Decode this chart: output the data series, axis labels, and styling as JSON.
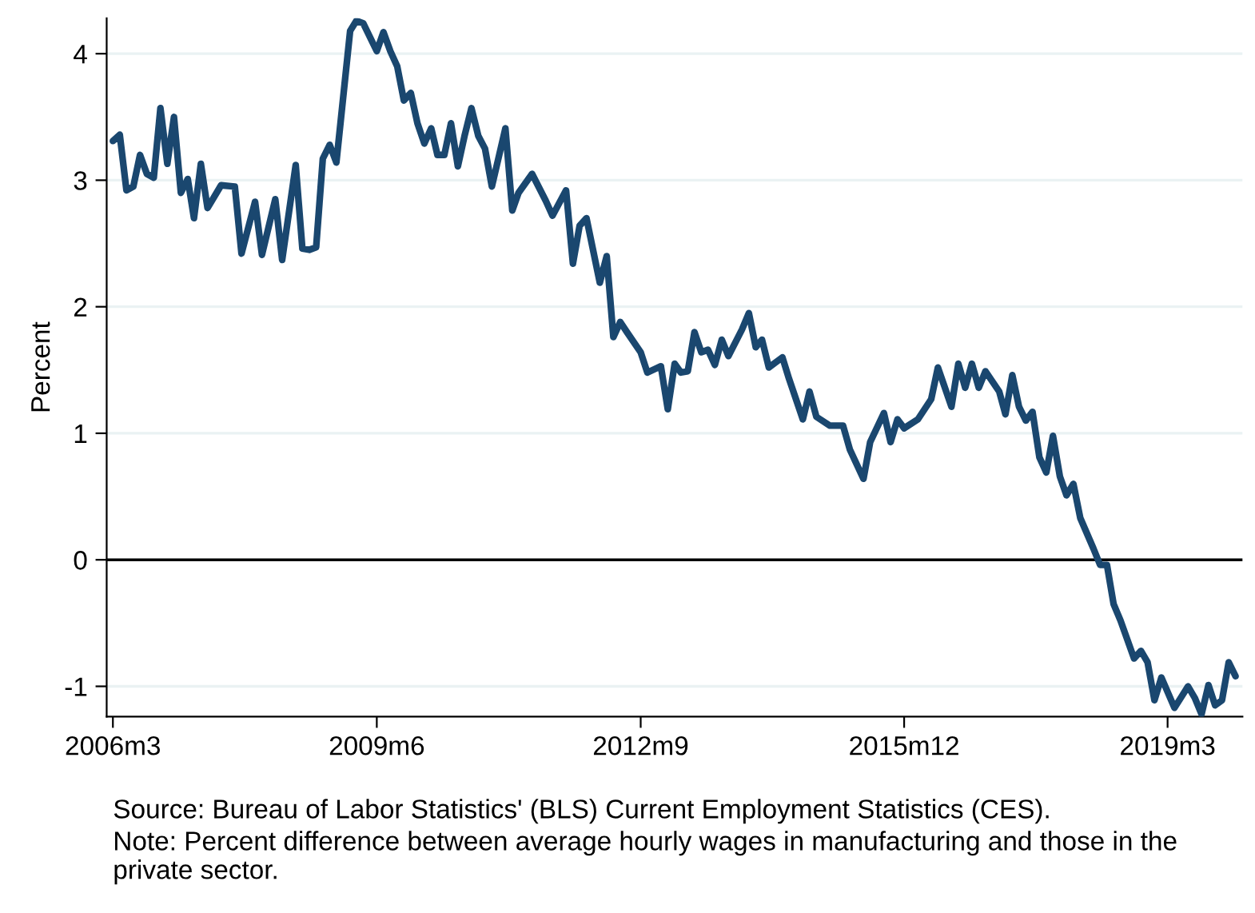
{
  "chart_data": {
    "type": "line",
    "ylabel": "Percent",
    "x": [
      "2006-03",
      "2006-04",
      "2006-05",
      "2006-06",
      "2006-07",
      "2006-08",
      "2006-09",
      "2006-10",
      "2006-11",
      "2006-12",
      "2007-01",
      "2007-02",
      "2007-03",
      "2007-04",
      "2007-05",
      "2007-07",
      "2007-09",
      "2007-10",
      "2007-12",
      "2008-01",
      "2008-03",
      "2008-04",
      "2008-06",
      "2008-07",
      "2008-08",
      "2008-09",
      "2008-10",
      "2008-11",
      "2008-12",
      "2009-02",
      "2009-03",
      "2009-04",
      "2009-06",
      "2009-07",
      "2009-08",
      "2009-09",
      "2009-10",
      "2009-11",
      "2009-12",
      "2010-01",
      "2010-02",
      "2010-03",
      "2010-04",
      "2010-05",
      "2010-06",
      "2010-07",
      "2010-08",
      "2010-09",
      "2010-10",
      "2010-11",
      "2011-01",
      "2011-02",
      "2011-03",
      "2011-05",
      "2011-07",
      "2011-08",
      "2011-10",
      "2011-11",
      "2011-12",
      "2012-01",
      "2012-03",
      "2012-04",
      "2012-05",
      "2012-06",
      "2012-07",
      "2012-09",
      "2012-10",
      "2012-12",
      "2013-01",
      "2013-02",
      "2013-03",
      "2013-04",
      "2013-05",
      "2013-06",
      "2013-07",
      "2013-08",
      "2013-09",
      "2013-10",
      "2013-12",
      "2014-01",
      "2014-02",
      "2014-03",
      "2014-04",
      "2014-06",
      "2014-07",
      "2014-09",
      "2014-10",
      "2014-11",
      "2015-01",
      "2015-03",
      "2015-04",
      "2015-06",
      "2015-07",
      "2015-09",
      "2015-10",
      "2015-11",
      "2015-12",
      "2016-02",
      "2016-04",
      "2016-05",
      "2016-07",
      "2016-08",
      "2016-09",
      "2016-10",
      "2016-11",
      "2016-12",
      "2017-02",
      "2017-03",
      "2017-04",
      "2017-05",
      "2017-06",
      "2017-07",
      "2017-08",
      "2017-09",
      "2017-10",
      "2017-11",
      "2017-12",
      "2018-01",
      "2018-02",
      "2018-04",
      "2018-05",
      "2018-06",
      "2018-07",
      "2018-08",
      "2018-10",
      "2018-11",
      "2018-12",
      "2019-01",
      "2019-02",
      "2019-04",
      "2019-06",
      "2019-07",
      "2019-08",
      "2019-09",
      "2019-10",
      "2019-11",
      "2019-12",
      "2020-01"
    ],
    "series": [
      {
        "color": "#1a476f",
        "values": [
          3.31,
          3.36,
          2.92,
          2.95,
          3.2,
          3.05,
          3.02,
          3.57,
          3.13,
          3.5,
          2.9,
          3.01,
          2.7,
          3.13,
          2.78,
          2.96,
          2.95,
          2.42,
          2.83,
          2.41,
          2.85,
          2.37,
          3.12,
          2.46,
          2.45,
          2.47,
          3.17,
          3.28,
          3.14,
          4.18,
          4.26,
          4.24,
          4.02,
          4.17,
          4.02,
          3.9,
          3.63,
          3.69,
          3.45,
          3.29,
          3.41,
          3.2,
          3.2,
          3.45,
          3.11,
          3.35,
          3.57,
          3.35,
          3.25,
          2.95,
          3.41,
          2.76,
          2.9,
          3.05,
          2.84,
          2.72,
          2.92,
          2.34,
          2.64,
          2.7,
          2.19,
          2.4,
          1.76,
          1.88,
          1.8,
          1.64,
          1.48,
          1.53,
          1.19,
          1.55,
          1.48,
          1.49,
          1.8,
          1.64,
          1.66,
          1.54,
          1.74,
          1.61,
          1.82,
          1.95,
          1.68,
          1.74,
          1.52,
          1.6,
          1.43,
          1.11,
          1.33,
          1.13,
          1.06,
          1.06,
          0.87,
          0.64,
          0.93,
          1.16,
          0.93,
          1.11,
          1.04,
          1.11,
          1.27,
          1.52,
          1.21,
          1.55,
          1.36,
          1.55,
          1.36,
          1.49,
          1.33,
          1.15,
          1.46,
          1.21,
          1.1,
          1.17,
          0.81,
          0.69,
          0.98,
          0.66,
          0.51,
          0.6,
          0.33,
          0.09,
          -0.04,
          -0.04,
          -0.35,
          -0.48,
          -0.78,
          -0.72,
          -0.81,
          -1.11,
          -0.93,
          -1.17,
          -1.0,
          -1.09,
          -1.22,
          -0.99,
          -1.15,
          -1.11,
          -0.81,
          -0.92
        ]
      }
    ],
    "xlim": [
      "2006-02",
      "2020-02"
    ],
    "xticks": [
      {
        "value": "2006-03",
        "label": "2006m3"
      },
      {
        "value": "2009-06",
        "label": "2009m6"
      },
      {
        "value": "2012-09",
        "label": "2012m9"
      },
      {
        "value": "2015-12",
        "label": "2015m12"
      },
      {
        "value": "2019-03",
        "label": "2019m3"
      }
    ],
    "ylim": [
      -1.24,
      4.28
    ],
    "yticks": [
      -1,
      0,
      1,
      2,
      3,
      4
    ],
    "grid": "y",
    "legend": false,
    "marker": "none",
    "line_style": "solid",
    "ref_lines": [
      {
        "axis": "y",
        "value": 0,
        "color": "#000000"
      }
    ],
    "annotations": [
      "Source: Bureau of Labor Statistics' (BLS) Current Employment Statistics (CES).",
      "Note: Percent difference between average hourly wages in manufacturing and those in the private sector."
    ]
  }
}
